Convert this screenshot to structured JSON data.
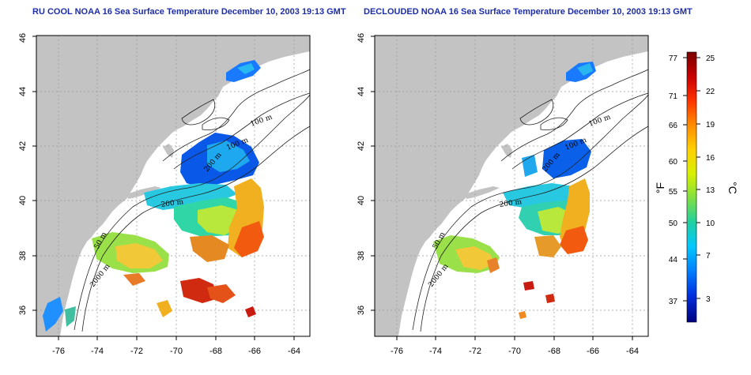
{
  "titles": {
    "left": "RU COOL NOAA 16 Sea Surface Temperature December 10, 2003 19:13 GMT",
    "right": "DECLOUDED NOAA 16 Sea Surface Temperature December 10, 2003 19:13 GMT"
  },
  "axes": {
    "lon_ticks": [
      "-76",
      "-74",
      "-72",
      "-70",
      "-68",
      "-66",
      "-64"
    ],
    "lat_ticks": [
      "36",
      "38",
      "40",
      "42",
      "44",
      "46"
    ]
  },
  "contours": {
    "left": [
      "100 m",
      "100 m",
      "200 m",
      "200 m",
      "50 m",
      "2000 m"
    ],
    "right": [
      "100 m",
      "100 m",
      "200 m",
      "200 m",
      "50 m",
      "2000 m"
    ]
  },
  "colorbar": {
    "fahrenheit_ticks": [
      "77",
      "71",
      "66",
      "60",
      "55",
      "50",
      "44",
      "37"
    ],
    "celsius_ticks": [
      "25",
      "22",
      "19",
      "16",
      "13",
      "10",
      "7",
      "3"
    ],
    "fahrenheit_unit": "°F",
    "celsius_unit": "°C",
    "colors": [
      "#7a0000",
      "#c80000",
      "#ff3300",
      "#ff8c00",
      "#ffd000",
      "#d8f000",
      "#80e040",
      "#20d0a0",
      "#00c8ff",
      "#0080ff",
      "#0030e0",
      "#000080"
    ]
  }
}
